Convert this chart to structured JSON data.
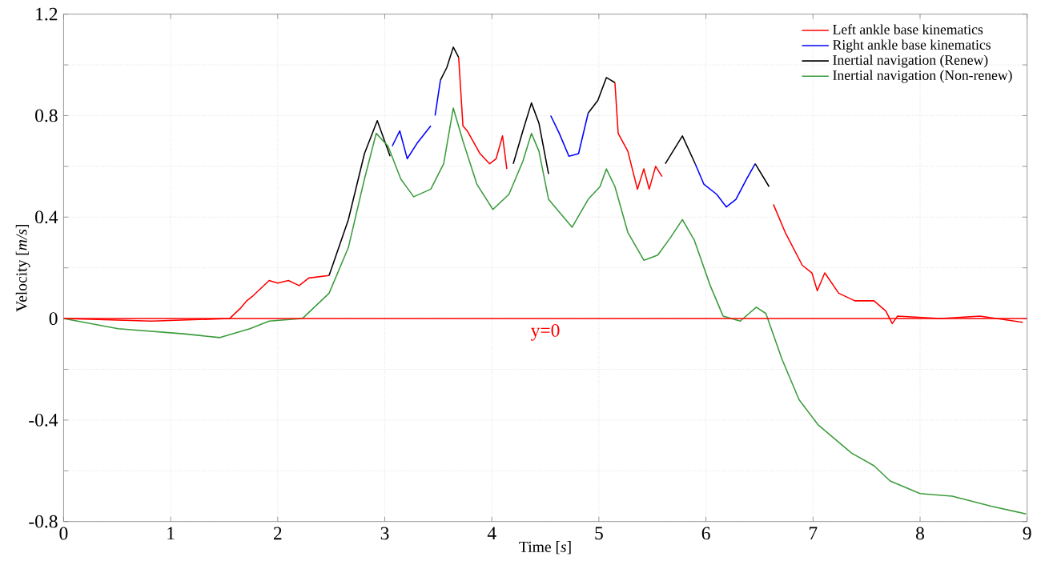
{
  "chart_data": {
    "type": "line",
    "xlabel": "Time [*s*]",
    "ylabel": "Velocity [*m/s*]",
    "xlim": [
      0,
      9
    ],
    "ylim": [
      -0.8,
      1.2
    ],
    "xticks": [
      0,
      1,
      2,
      3,
      4,
      5,
      6,
      7,
      8,
      9
    ],
    "yticks": [
      -0.8,
      {
        "value": -0.6,
        "label": null
      },
      -0.4,
      {
        "value": -0.2,
        "label": null
      },
      0,
      {
        "value": 0.2,
        "label": null
      },
      0.4,
      {
        "value": 0.6,
        "label": null
      },
      0.8,
      {
        "value": 1.0,
        "label": null
      },
      1.2
    ],
    "grid": true,
    "legend": "top right",
    "line_style": "solid",
    "marker": "none",
    "ref_lines": [
      {
        "axis": "y",
        "value": 0,
        "label": "y=0",
        "color": "#ff0000"
      }
    ],
    "series": [
      {
        "name": "Left ankle base kinematics",
        "color": "#ff0000",
        "x": [
          0,
          0.82,
          1.55,
          1.65,
          1.71,
          1.77,
          1.92,
          2.0,
          2.1,
          2.2,
          2.29,
          2.48,
          null,
          3.69,
          3.73,
          3.77,
          3.89,
          3.98,
          4.04,
          4.1,
          4.14,
          null,
          5.15,
          5.18,
          5.27,
          5.36,
          5.42,
          5.47,
          5.53,
          5.59,
          null,
          6.63,
          6.74,
          6.9,
          6.99,
          7.04,
          7.11,
          7.24,
          7.39,
          7.57,
          7.68,
          7.74,
          7.79,
          8.19,
          8.56,
          8.96
        ],
        "values": [
          0,
          -0.01,
          0,
          0.04,
          0.07,
          0.09,
          0.15,
          0.14,
          0.15,
          0.13,
          0.16,
          0.17,
          null,
          1.03,
          0.76,
          0.74,
          0.65,
          0.61,
          0.63,
          0.72,
          0.59,
          null,
          0.93,
          0.73,
          0.66,
          0.51,
          0.59,
          0.51,
          0.6,
          0.56,
          null,
          0.45,
          0.34,
          0.21,
          0.18,
          0.11,
          0.18,
          0.1,
          0.07,
          0.07,
          0.03,
          -0.02,
          0.01,
          0,
          0.01,
          -0.015
        ]
      },
      {
        "name": "Right ankle base kinematics",
        "color": "#0000ff",
        "x": [
          3.07,
          3.14,
          3.21,
          3.3,
          3.43,
          null,
          3.47,
          3.52,
          null,
          4.55,
          4.63,
          4.72,
          4.81,
          4.9,
          null,
          5.9,
          5.98,
          6.1,
          6.19,
          6.28,
          6.38,
          6.46
        ],
        "values": [
          0.68,
          0.74,
          0.63,
          0.69,
          0.76,
          null,
          0.8,
          0.94,
          null,
          0.8,
          0.73,
          0.64,
          0.65,
          0.81,
          null,
          0.61,
          0.53,
          0.49,
          0.44,
          0.47,
          0.55,
          0.61
        ]
      },
      {
        "name": "Inertial navigation (Renew)",
        "color": "#000000",
        "x": [
          2.48,
          2.66,
          2.81,
          2.93,
          3.05,
          null,
          3.52,
          3.58,
          3.64,
          3.69,
          null,
          4.2,
          4.29,
          4.37,
          4.44,
          4.53,
          null,
          4.9,
          4.99,
          5.07,
          5.15,
          null,
          5.62,
          5.78,
          5.9,
          null,
          6.46,
          6.59
        ],
        "values": [
          0.17,
          0.39,
          0.65,
          0.78,
          0.64,
          null,
          0.94,
          0.99,
          1.07,
          1.03,
          null,
          0.61,
          0.74,
          0.85,
          0.77,
          0.57,
          null,
          0.81,
          0.86,
          0.95,
          0.93,
          null,
          0.61,
          0.72,
          0.61,
          null,
          0.61,
          0.52
        ]
      },
      {
        "name": "Inertial navigation (Non-renew)",
        "color": "#3c9c3c",
        "x": [
          0,
          0.51,
          1.12,
          1.46,
          1.74,
          1.92,
          2.23,
          2.48,
          2.66,
          2.81,
          2.92,
          3.03,
          3.15,
          3.27,
          3.43,
          3.55,
          3.64,
          3.73,
          3.86,
          4.01,
          4.16,
          4.29,
          4.37,
          4.44,
          4.53,
          4.75,
          4.9,
          5.01,
          5.07,
          5.15,
          5.27,
          5.42,
          5.55,
          5.67,
          5.78,
          5.89,
          6.04,
          6.16,
          6.32,
          6.47,
          6.56,
          6.71,
          6.87,
          7.05,
          7.36,
          7.57,
          7.72,
          8.0,
          8.3,
          8.67,
          8.99
        ],
        "values": [
          0,
          -0.04,
          -0.06,
          -0.075,
          -0.04,
          -0.01,
          0,
          0.1,
          0.28,
          0.55,
          0.73,
          0.68,
          0.55,
          0.48,
          0.51,
          0.61,
          0.83,
          0.7,
          0.53,
          0.43,
          0.49,
          0.62,
          0.73,
          0.66,
          0.47,
          0.36,
          0.47,
          0.52,
          0.59,
          0.52,
          0.34,
          0.23,
          0.25,
          0.32,
          0.39,
          0.31,
          0.13,
          0.01,
          -0.01,
          0.045,
          0.02,
          -0.16,
          -0.32,
          -0.42,
          -0.53,
          -0.58,
          -0.64,
          -0.69,
          -0.7,
          -0.74,
          -0.77
        ]
      }
    ]
  }
}
